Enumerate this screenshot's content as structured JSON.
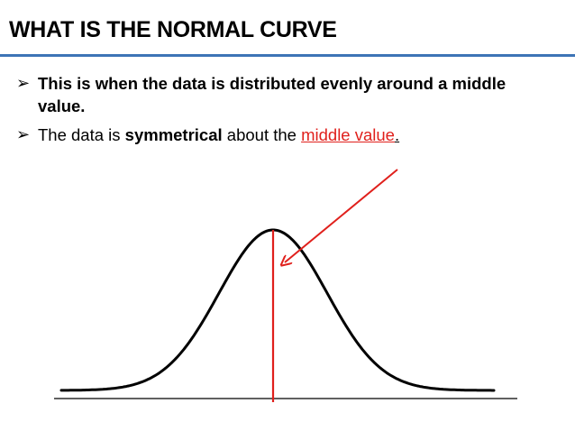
{
  "slide": {
    "title": "WHAT IS THE NORMAL CURVE",
    "bullets": [
      {
        "marker": "➢",
        "text": "This is when the data is distributed evenly around a middle value."
      },
      {
        "marker": "➢",
        "part1": "The data is ",
        "bold": "symmetrical",
        "part2": " about the ",
        "highlight": "middle value",
        "end": "."
      }
    ]
  },
  "colors": {
    "title_rule": "#3d74b6",
    "highlight": "#e0201c",
    "curve": "#000000",
    "center_line": "#e0201c",
    "arrow": "#e0201c"
  }
}
